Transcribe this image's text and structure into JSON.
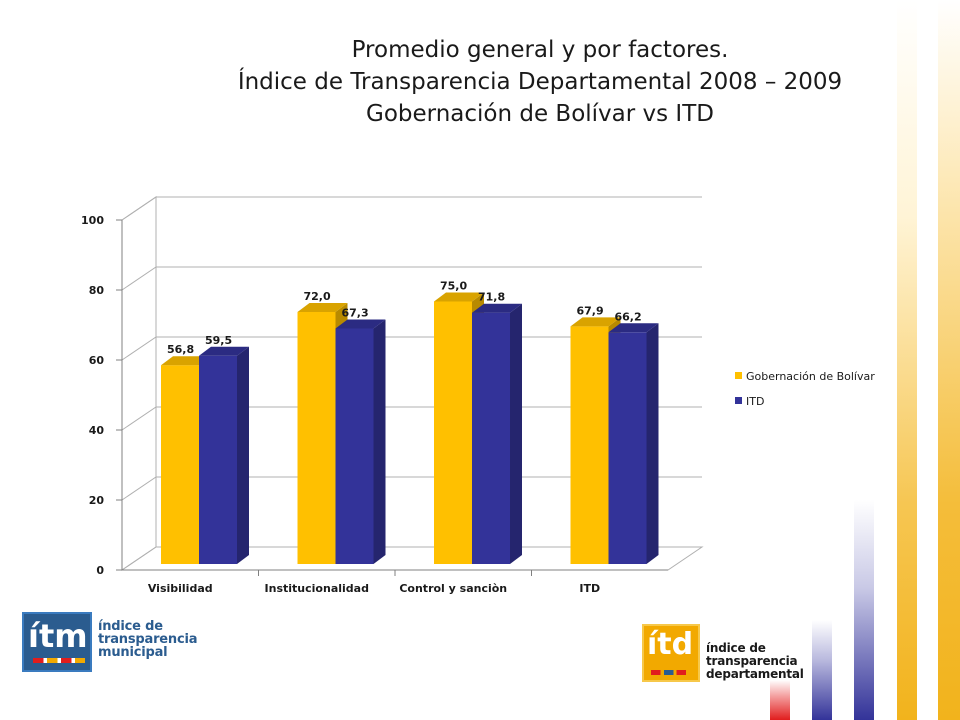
{
  "title": {
    "line1": "Promedio general y por factores.",
    "line2": "Índice de Transparencia Departamental 2008 – 2009",
    "line3": "Gobernación de Bolívar vs ITD"
  },
  "chart_data": {
    "type": "bar",
    "style": "3d-clustered",
    "categories": [
      "Visibilidad",
      "Institucionalidad",
      "Control y sanciòn",
      "ITD"
    ],
    "series": [
      {
        "name": "Gobernación de Bolívar",
        "color": "#FFC000",
        "values": [
          56.8,
          72.0,
          75.0,
          67.9
        ],
        "labels": [
          "56,8",
          "72,0",
          "75,0",
          "67,9"
        ]
      },
      {
        "name": "ITD",
        "color": "#333399",
        "values": [
          59.5,
          67.3,
          71.8,
          66.2
        ],
        "labels": [
          "59,5",
          "67,3",
          "71,8",
          "66,2"
        ]
      }
    ],
    "ylim": [
      0,
      100
    ],
    "yticks": [
      0,
      20,
      40,
      60,
      80,
      100
    ],
    "grid": true,
    "legend_position": "right"
  },
  "logos": {
    "itm": {
      "mark": "ítm",
      "lines": [
        "índice de",
        "transparencia",
        "municipal"
      ],
      "color": "#2b5c8f"
    },
    "itd": {
      "mark": "ítd",
      "lines": [
        "índice de",
        "transparencia",
        "departamental"
      ],
      "color": "#f2a900"
    }
  }
}
